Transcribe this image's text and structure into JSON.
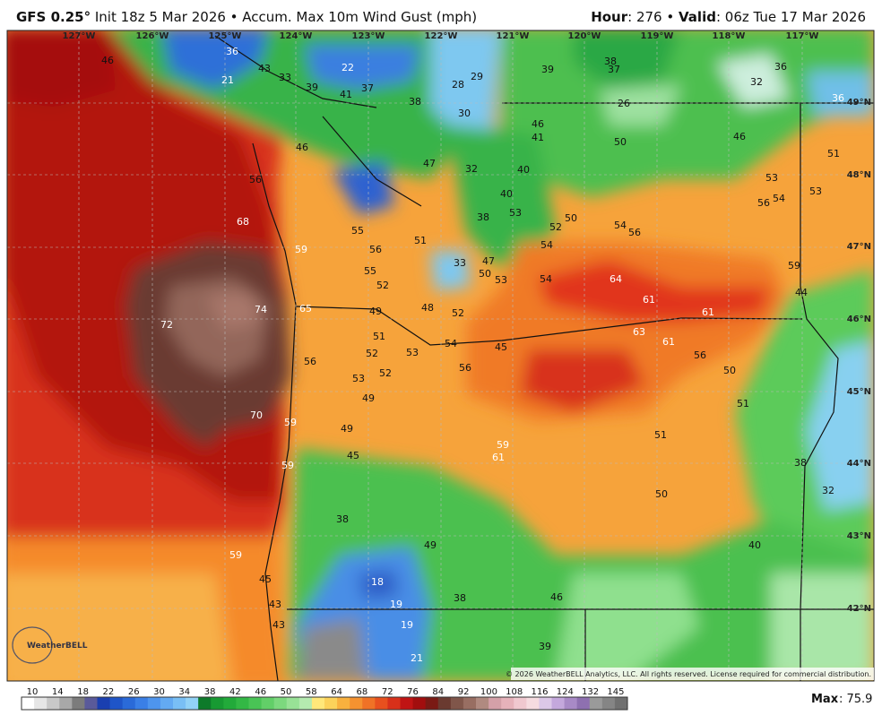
{
  "header": {
    "model": "GFS 0.25°",
    "description": "Init 18z 5 Mar 2026 • Accum. Max 10m Wind Gust (mph)",
    "hour_label": "Hour",
    "hour": ": 276",
    "separator": "•",
    "valid_label": "Valid",
    "valid": ": 06z Tue 17 Mar 2026"
  },
  "map": {
    "longitude_labels": [
      "127°W",
      "126°W",
      "125°W",
      "124°W",
      "123°W",
      "122°W",
      "121°W",
      "120°W",
      "119°W",
      "118°W",
      "117°W"
    ],
    "latitude_labels": [
      "49°N",
      "48°N",
      "47°N",
      "46°N",
      "45°N",
      "44°N",
      "43°N",
      "42°N"
    ],
    "point_values": [
      46,
      36,
      43,
      21,
      33,
      22,
      39,
      37,
      41,
      38,
      28,
      29,
      39,
      38,
      37,
      36,
      32,
      26,
      36,
      30,
      46,
      41,
      50,
      46,
      51,
      46,
      56,
      47,
      32,
      40,
      53,
      54,
      53,
      56,
      40,
      53,
      38,
      52,
      50,
      54,
      56,
      68,
      55,
      56,
      51,
      59,
      55,
      33,
      47,
      50,
      53,
      54,
      54,
      64,
      59,
      44,
      52,
      72,
      74,
      65,
      49,
      48,
      52,
      61,
      61,
      51,
      54,
      45,
      53,
      52,
      63,
      61,
      56,
      56,
      56,
      50,
      53,
      52,
      49,
      51,
      70,
      59,
      49,
      51,
      45,
      59,
      61,
      59,
      38,
      32,
      50,
      38,
      40,
      49,
      59,
      18,
      45,
      38,
      46,
      19,
      43,
      43,
      19,
      39,
      21
    ],
    "logo": "WeatherBELL",
    "copyright": "© 2026 WeatherBELL Analytics, LLC. All rights reserved. License required for commercial distribution."
  },
  "colorbar": {
    "labels": [
      "10",
      "14",
      "18",
      "22",
      "26",
      "30",
      "34",
      "38",
      "42",
      "46",
      "50",
      "58",
      "64",
      "68",
      "72",
      "76",
      "84",
      "92",
      "100",
      "108",
      "116",
      "124",
      "132",
      "145"
    ]
  },
  "footer": {
    "max_label": "Max",
    "max_value": ": 75.9"
  }
}
